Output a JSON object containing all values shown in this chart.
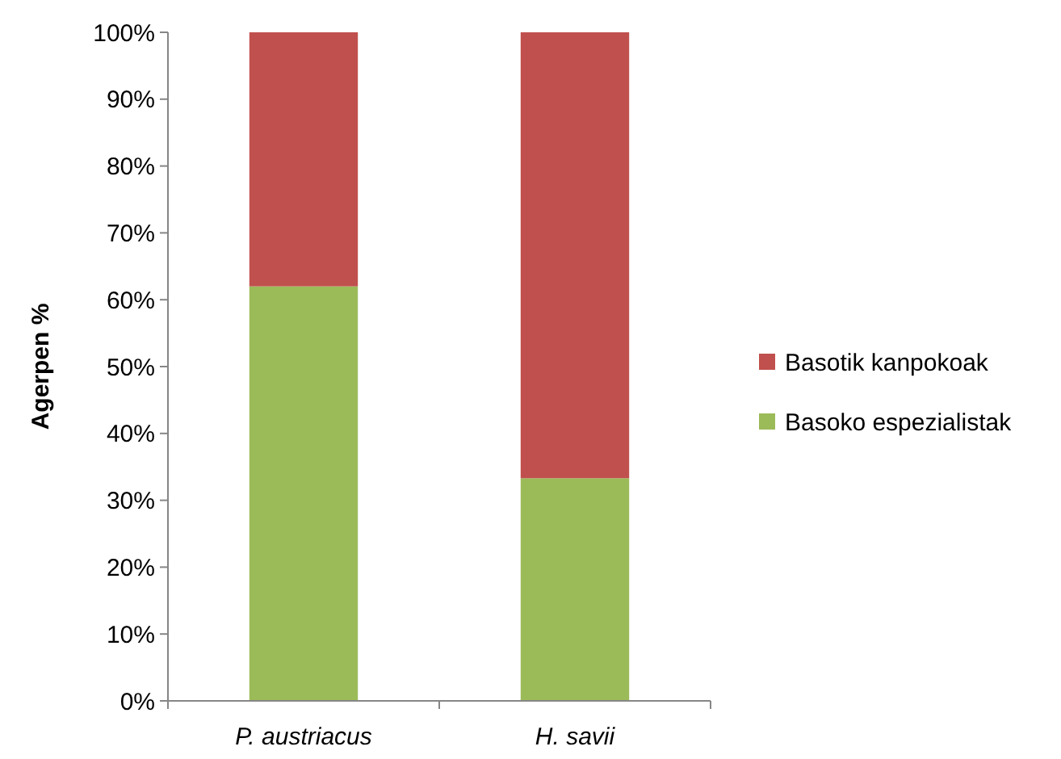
{
  "chart_data": {
    "type": "bar",
    "stacked": true,
    "ylabel": "Agerpen %",
    "categories": [
      "P. austriacus",
      "H. savii"
    ],
    "series": [
      {
        "name": "Basoko espezialistak",
        "color": "#9bbb59",
        "values": [
          62,
          33.3
        ]
      },
      {
        "name": "Basotik kanpokoak",
        "color": "#c0504d",
        "values": [
          38,
          66.7
        ]
      }
    ],
    "ylim": [
      0,
      100
    ],
    "yticks": [
      {
        "value": 0,
        "label": "0%"
      },
      {
        "value": 10,
        "label": "10%"
      },
      {
        "value": 20,
        "label": "20%"
      },
      {
        "value": 30,
        "label": "30%"
      },
      {
        "value": 40,
        "label": "40%"
      },
      {
        "value": 50,
        "label": "50%"
      },
      {
        "value": 60,
        "label": "60%"
      },
      {
        "value": 70,
        "label": "70%"
      },
      {
        "value": 80,
        "label": "80%"
      },
      {
        "value": 90,
        "label": "90%"
      },
      {
        "value": 100,
        "label": "100%"
      }
    ],
    "grid": false,
    "legend": "right"
  }
}
